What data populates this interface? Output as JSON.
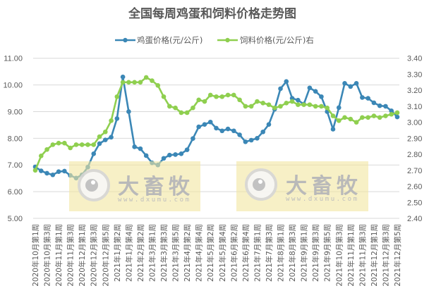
{
  "title": "全国每周鸡蛋和饲料价格走势图",
  "legend": [
    {
      "label": "鸡蛋价格(元/公斤)",
      "color": "#3b87b6",
      "icon": "line-with-marker-icon"
    },
    {
      "label": "饲料价格(元/公斤)右",
      "color": "#8fcf4f",
      "icon": "line-with-marker-icon"
    }
  ],
  "axes": {
    "left_ticks": [
      "11.00",
      "10.00",
      "9.00",
      "8.00",
      "7.00",
      "6.00",
      "5.00"
    ],
    "right_ticks": [
      "3.40",
      "3.30",
      "3.20",
      "3.10",
      "3.00",
      "2.90",
      "2.80",
      "2.70",
      "2.60",
      "2.50",
      "2.40"
    ]
  },
  "watermarks": [
    {
      "brand": "大畜牧",
      "url": "www.dxumu.com"
    },
    {
      "brand": "大畜牧",
      "url": "www.dxumu.com"
    }
  ],
  "colors": {
    "egg": "#3b87b6",
    "feed": "#8fcf4f",
    "grid": "#d9d9d9",
    "text": "#595959",
    "watermark_bg": "#f2e6a0"
  },
  "chart_data": {
    "type": "line",
    "title": "全国每周鸡蛋和饲料价格走势图",
    "xlabel": "",
    "ylabel": "",
    "ylabel_right": "",
    "ylim": [
      5,
      11
    ],
    "ylim_right": [
      2.4,
      3.4
    ],
    "grid": true,
    "legend_position": "top",
    "categories": [
      "2020年10月第1周",
      "",
      "2020年10月第3周",
      "",
      "2020年11月第1周",
      "",
      "2020年11月第3周",
      "",
      "2020年12月第1周",
      "",
      "2020年12月第3周",
      "",
      "2020年12月第5周",
      "",
      "2021年1月第2周",
      "",
      "2021年1月第4周",
      "",
      "2021年2月第2周",
      "",
      "2021年3月第1周",
      "",
      "2021年3月第3周",
      "",
      "2021年3月第5周",
      "",
      "2021年4月第2周",
      "",
      "2021年4月第4周",
      "",
      "2021年5月第2周",
      "",
      "2021年5月第4周",
      "",
      "2021年6月第2周",
      "",
      "2021年6月第4周",
      "",
      "2021年7月第1周",
      "",
      "2021年7月第3周",
      "",
      "2021年8月第1周",
      "",
      "2021年8月第3周",
      "",
      "2021年9月第1周",
      "",
      "2021年9月第3周",
      "",
      "2021年9月第5周",
      "",
      "2021年10月第3周",
      "",
      "2021年11月第1周",
      "",
      "2021年11月第3周",
      "",
      "2021年12月第1周",
      "",
      "2021年12月第3周",
      "",
      "2021年12月第5周"
    ],
    "series": [
      {
        "name": "鸡蛋价格(元/公斤)",
        "axis": "left",
        "color": "#3b87b6",
        "values": [
          6.93,
          6.78,
          6.69,
          6.63,
          6.75,
          6.77,
          6.61,
          6.51,
          6.63,
          6.92,
          7.42,
          7.8,
          7.94,
          8.04,
          8.74,
          10.3,
          9.0,
          7.68,
          7.61,
          7.35,
          7.08,
          7.0,
          7.25,
          7.37,
          7.39,
          7.42,
          7.57,
          7.99,
          8.43,
          8.52,
          8.61,
          8.38,
          8.28,
          8.35,
          8.28,
          8.13,
          7.87,
          7.93,
          8.0,
          8.24,
          8.52,
          9.09,
          9.86,
          10.13,
          9.5,
          9.43,
          9.28,
          9.89,
          9.76,
          9.56,
          9.0,
          8.34,
          9.15,
          10.06,
          9.94,
          10.06,
          9.53,
          9.5,
          9.33,
          9.22,
          9.2,
          9.03,
          8.8
        ]
      },
      {
        "name": "饲料价格(元/公斤)右",
        "axis": "right",
        "color": "#8fcf4f",
        "values": [
          2.7,
          2.79,
          2.83,
          2.86,
          2.87,
          2.87,
          2.84,
          2.86,
          2.86,
          2.86,
          2.86,
          2.91,
          2.94,
          3.01,
          3.16,
          3.25,
          3.25,
          3.25,
          3.25,
          3.28,
          3.26,
          3.23,
          3.16,
          3.1,
          3.09,
          3.06,
          3.06,
          3.09,
          3.14,
          3.13,
          3.17,
          3.16,
          3.16,
          3.17,
          3.17,
          3.14,
          3.1,
          3.1,
          3.13,
          3.12,
          3.11,
          3.09,
          3.1,
          3.12,
          3.13,
          3.11,
          3.11,
          3.11,
          3.1,
          3.1,
          3.09,
          3.04,
          3.01,
          3.03,
          3.02,
          3.0,
          3.03,
          3.03,
          3.04,
          3.03,
          3.04,
          3.05,
          3.06
        ]
      }
    ]
  }
}
